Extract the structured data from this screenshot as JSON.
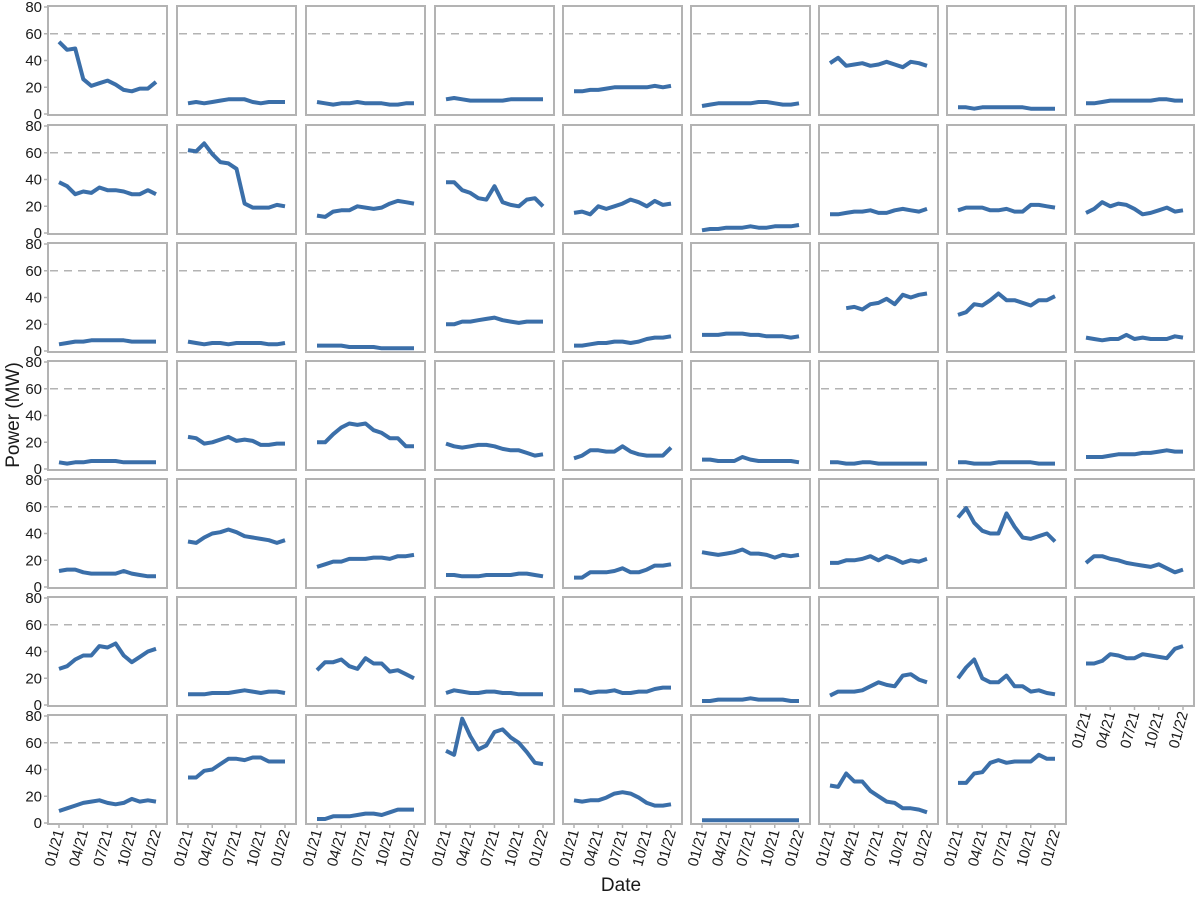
{
  "chart_data": {
    "type": "line",
    "layout": "small-multiples",
    "grid": "off",
    "xlabel": "Date",
    "ylabel": "Power (MW)",
    "ylim": [
      0,
      80
    ],
    "yticks": [
      0,
      20,
      40,
      60,
      80
    ],
    "xlim": [
      "2021-01",
      "2022-01"
    ],
    "xtick_labels": [
      "01/21",
      "04/21",
      "07/21",
      "10/21",
      "01/22"
    ],
    "reference_line": {
      "y": 60,
      "style": "dashed"
    },
    "colors": {
      "line": "#3b6fa9",
      "panel_border": "#b3b3b3",
      "reference": "#b3b3b3"
    },
    "x": [
      "2021-01",
      "2021-02",
      "2021-03",
      "2021-04",
      "2021-05",
      "2021-06",
      "2021-07",
      "2021-08",
      "2021-09",
      "2021-10",
      "2021-11",
      "2021-12",
      "2022-01"
    ],
    "series": [
      {
        "values": [
          54,
          48,
          49,
          26,
          21,
          23,
          25,
          22,
          18,
          17,
          19,
          19,
          24
        ]
      },
      {
        "values": [
          8,
          9,
          8,
          9,
          10,
          11,
          11,
          11,
          9,
          8,
          9,
          9,
          9
        ]
      },
      {
        "values": [
          9,
          8,
          7,
          8,
          8,
          9,
          8,
          8,
          8,
          7,
          7,
          8,
          8
        ]
      },
      {
        "values": [
          11,
          12,
          11,
          10,
          10,
          10,
          10,
          10,
          11,
          11,
          11,
          11,
          11
        ]
      },
      {
        "values": [
          17,
          17,
          18,
          18,
          19,
          20,
          20,
          20,
          20,
          20,
          21,
          20,
          21
        ]
      },
      {
        "values": [
          6,
          7,
          8,
          8,
          8,
          8,
          8,
          9,
          9,
          8,
          7,
          7,
          8
        ]
      },
      {
        "values": [
          38,
          42,
          36,
          37,
          38,
          36,
          37,
          39,
          37,
          35,
          39,
          38,
          36
        ]
      },
      {
        "values": [
          5,
          5,
          4,
          5,
          5,
          5,
          5,
          5,
          5,
          4,
          4,
          4,
          4
        ]
      },
      {
        "values": [
          8,
          8,
          9,
          10,
          10,
          10,
          10,
          10,
          10,
          11,
          11,
          10,
          10
        ]
      },
      {
        "values": [
          38,
          35,
          29,
          31,
          30,
          34,
          32,
          32,
          31,
          29,
          29,
          32,
          29
        ]
      },
      {
        "values": [
          62,
          61,
          67,
          59,
          53,
          52,
          48,
          22,
          19,
          19,
          19,
          21,
          20
        ]
      },
      {
        "values": [
          13,
          12,
          16,
          17,
          17,
          20,
          19,
          18,
          19,
          22,
          24,
          23,
          22
        ]
      },
      {
        "values": [
          38,
          38,
          32,
          30,
          26,
          25,
          35,
          23,
          21,
          20,
          25,
          26,
          20
        ]
      },
      {
        "values": [
          15,
          16,
          14,
          20,
          18,
          20,
          22,
          25,
          23,
          20,
          24,
          21,
          22
        ]
      },
      {
        "values": [
          2,
          3,
          3,
          4,
          4,
          4,
          5,
          4,
          4,
          5,
          5,
          5,
          6
        ]
      },
      {
        "values": [
          14,
          14,
          15,
          16,
          16,
          17,
          15,
          15,
          17,
          18,
          17,
          16,
          18
        ]
      },
      {
        "values": [
          17,
          19,
          19,
          19,
          17,
          17,
          18,
          16,
          16,
          21,
          21,
          20,
          19
        ]
      },
      {
        "values": [
          15,
          18,
          23,
          20,
          22,
          21,
          18,
          14,
          15,
          17,
          19,
          16,
          17
        ]
      },
      {
        "values": [
          5,
          6,
          7,
          7,
          8,
          8,
          8,
          8,
          8,
          7,
          7,
          7,
          7
        ]
      },
      {
        "values": [
          7,
          6,
          5,
          6,
          6,
          5,
          6,
          6,
          6,
          6,
          5,
          5,
          6
        ]
      },
      {
        "values": [
          4,
          4,
          4,
          4,
          3,
          3,
          3,
          3,
          2,
          2,
          2,
          2,
          2
        ]
      },
      {
        "values": [
          20,
          20,
          22,
          22,
          23,
          24,
          25,
          23,
          22,
          21,
          22,
          22,
          22
        ]
      },
      {
        "values": [
          4,
          4,
          5,
          6,
          6,
          7,
          7,
          6,
          7,
          9,
          10,
          10,
          11
        ]
      },
      {
        "values": [
          12,
          12,
          12,
          13,
          13,
          13,
          12,
          12,
          11,
          11,
          11,
          10,
          11
        ]
      },
      {
        "values": [
          null,
          null,
          32,
          33,
          31,
          35,
          36,
          39,
          35,
          42,
          40,
          42,
          43
        ]
      },
      {
        "values": [
          27,
          29,
          35,
          34,
          38,
          43,
          38,
          38,
          36,
          34,
          38,
          38,
          41
        ]
      },
      {
        "values": [
          10,
          9,
          8,
          9,
          9,
          12,
          9,
          10,
          9,
          9,
          9,
          11,
          10
        ]
      },
      {
        "values": [
          5,
          4,
          5,
          5,
          6,
          6,
          6,
          6,
          5,
          5,
          5,
          5,
          5
        ]
      },
      {
        "values": [
          24,
          23,
          19,
          20,
          22,
          24,
          21,
          22,
          21,
          18,
          18,
          19,
          19
        ]
      },
      {
        "values": [
          20,
          20,
          26,
          31,
          34,
          33,
          34,
          29,
          27,
          23,
          23,
          17,
          17
        ]
      },
      {
        "values": [
          19,
          17,
          16,
          17,
          18,
          18,
          17,
          15,
          14,
          14,
          12,
          10,
          11
        ]
      },
      {
        "values": [
          8,
          10,
          14,
          14,
          13,
          13,
          17,
          13,
          11,
          10,
          10,
          10,
          16
        ]
      },
      {
        "values": [
          7,
          7,
          6,
          6,
          6,
          9,
          7,
          6,
          6,
          6,
          6,
          6,
          5
        ]
      },
      {
        "values": [
          5,
          5,
          4,
          4,
          5,
          5,
          4,
          4,
          4,
          4,
          4,
          4,
          4
        ]
      },
      {
        "values": [
          5,
          5,
          4,
          4,
          4,
          5,
          5,
          5,
          5,
          5,
          4,
          4,
          4
        ]
      },
      {
        "values": [
          9,
          9,
          9,
          10,
          11,
          11,
          11,
          12,
          12,
          13,
          14,
          13,
          13
        ]
      },
      {
        "values": [
          12,
          13,
          13,
          11,
          10,
          10,
          10,
          10,
          12,
          10,
          9,
          8,
          8
        ]
      },
      {
        "values": [
          34,
          33,
          37,
          40,
          41,
          43,
          41,
          38,
          37,
          36,
          35,
          33,
          35
        ]
      },
      {
        "values": [
          15,
          17,
          19,
          19,
          21,
          21,
          21,
          22,
          22,
          21,
          23,
          23,
          24
        ]
      },
      {
        "values": [
          9,
          9,
          8,
          8,
          8,
          9,
          9,
          9,
          9,
          10,
          10,
          9,
          8
        ]
      },
      {
        "values": [
          7,
          7,
          11,
          11,
          11,
          12,
          14,
          11,
          11,
          13,
          16,
          16,
          17
        ]
      },
      {
        "values": [
          26,
          25,
          24,
          25,
          26,
          28,
          25,
          25,
          24,
          22,
          24,
          23,
          24
        ]
      },
      {
        "values": [
          18,
          18,
          20,
          20,
          21,
          23,
          20,
          23,
          21,
          18,
          20,
          19,
          21
        ]
      },
      {
        "values": [
          52,
          59,
          48,
          42,
          40,
          40,
          55,
          45,
          37,
          36,
          38,
          40,
          34
        ]
      },
      {
        "values": [
          18,
          23,
          23,
          21,
          20,
          18,
          17,
          16,
          15,
          17,
          14,
          11,
          13
        ]
      },
      {
        "values": [
          27,
          29,
          34,
          37,
          37,
          44,
          43,
          46,
          37,
          32,
          36,
          40,
          42
        ]
      },
      {
        "values": [
          8,
          8,
          8,
          9,
          9,
          9,
          10,
          11,
          10,
          9,
          10,
          10,
          9
        ]
      },
      {
        "values": [
          26,
          32,
          32,
          34,
          29,
          27,
          35,
          31,
          31,
          25,
          26,
          23,
          20
        ]
      },
      {
        "values": [
          9,
          11,
          10,
          9,
          9,
          10,
          10,
          9,
          9,
          8,
          8,
          8,
          8
        ]
      },
      {
        "values": [
          11,
          11,
          9,
          10,
          10,
          11,
          9,
          9,
          10,
          10,
          12,
          13,
          13
        ]
      },
      {
        "values": [
          3,
          3,
          4,
          4,
          4,
          4,
          5,
          4,
          4,
          4,
          4,
          3,
          3
        ]
      },
      {
        "values": [
          7,
          10,
          10,
          10,
          11,
          14,
          17,
          15,
          14,
          22,
          23,
          19,
          17
        ]
      },
      {
        "values": [
          20,
          28,
          34,
          20,
          17,
          17,
          22,
          14,
          14,
          10,
          11,
          9,
          8
        ]
      },
      {
        "values": [
          31,
          31,
          33,
          38,
          37,
          35,
          35,
          38,
          37,
          36,
          35,
          42,
          44
        ]
      },
      {
        "values": [
          9,
          11,
          13,
          15,
          16,
          17,
          15,
          14,
          15,
          18,
          16,
          17,
          16
        ]
      },
      {
        "values": [
          34,
          34,
          39,
          40,
          44,
          48,
          48,
          47,
          49,
          49,
          46,
          46,
          46
        ]
      },
      {
        "values": [
          3,
          3,
          5,
          5,
          5,
          6,
          7,
          7,
          6,
          8,
          10,
          10,
          10
        ]
      },
      {
        "values": [
          54,
          51,
          78,
          65,
          55,
          58,
          68,
          70,
          64,
          60,
          53,
          45,
          44
        ]
      },
      {
        "values": [
          17,
          16,
          17,
          17,
          19,
          22,
          23,
          22,
          19,
          15,
          13,
          13,
          14
        ]
      },
      {
        "values": [
          2,
          2,
          2,
          2,
          2,
          2,
          2,
          2,
          2,
          2,
          2,
          2,
          2
        ]
      },
      {
        "values": [
          28,
          27,
          37,
          31,
          31,
          24,
          20,
          16,
          15,
          11,
          11,
          10,
          8
        ]
      },
      {
        "values": [
          30,
          30,
          37,
          38,
          45,
          47,
          45,
          46,
          46,
          46,
          51,
          48,
          48
        ]
      }
    ]
  }
}
